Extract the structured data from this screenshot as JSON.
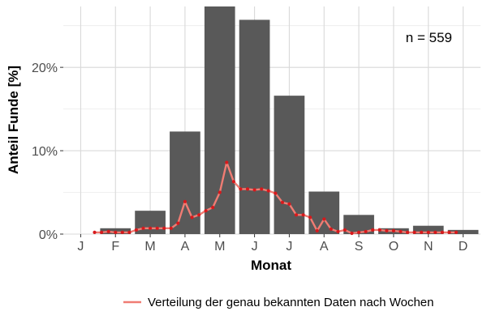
{
  "chart_data": {
    "type": "bar",
    "categories": [
      "J",
      "F",
      "M",
      "A",
      "M",
      "J",
      "J",
      "A",
      "S",
      "O",
      "N",
      "D"
    ],
    "values": [
      0.0,
      0.7,
      2.8,
      12.3,
      27.3,
      25.7,
      16.6,
      5.1,
      2.3,
      0.7,
      1.0,
      0.5
    ],
    "ylabel": "Anteil Funde [%]",
    "xlabel": "Monat",
    "ylim": [
      0,
      27.3
    ],
    "yticks": [
      0,
      10,
      20
    ],
    "ytick_labels": [
      "0%",
      "10%",
      "20%"
    ],
    "grid": true,
    "annotation": "n = 559",
    "bar_color": "#595959",
    "series": [
      {
        "name": "Verteilung der genau bekannten Daten nach Wochen",
        "type": "line",
        "color": "#f07c73",
        "point_color": "#d7191c",
        "x": [
          1.4,
          1.6,
          1.8,
          2.0,
          2.2,
          2.4,
          2.6,
          2.8,
          3.0,
          3.2,
          3.4,
          3.6,
          3.8,
          4.0,
          4.2,
          4.4,
          4.6,
          4.8,
          5.0,
          5.2,
          5.4,
          5.6,
          5.8,
          6.0,
          6.2,
          6.4,
          6.6,
          6.8,
          7.0,
          7.2,
          7.4,
          7.6,
          7.8,
          8.0,
          8.2,
          8.4,
          8.6,
          8.8,
          9.0,
          9.2,
          9.4,
          9.6,
          9.8,
          10.0,
          10.2,
          10.4,
          10.6,
          10.8,
          11.0,
          11.2,
          11.4,
          11.6,
          11.8
        ],
        "values": [
          0.2,
          0.2,
          0.3,
          0.2,
          0.2,
          0.2,
          0.5,
          0.7,
          0.7,
          0.7,
          0.7,
          0.7,
          1.3,
          3.9,
          2.0,
          2.3,
          2.8,
          3.2,
          5.0,
          8.6,
          6.3,
          5.4,
          5.4,
          5.3,
          5.4,
          5.2,
          4.9,
          3.8,
          3.6,
          2.3,
          2.3,
          2.0,
          0.4,
          1.8,
          0.6,
          0.3,
          0.5,
          0.1,
          0.2,
          0.3,
          0.5,
          0.5,
          0.4,
          0.4,
          0.3,
          0.2,
          0.2,
          0.2,
          0.2,
          0.2,
          0.2,
          0.2,
          0.2
        ]
      }
    ],
    "legend": {
      "position": "bottom",
      "label": "Verteilung der genau bekannten Daten nach Wochen"
    }
  }
}
